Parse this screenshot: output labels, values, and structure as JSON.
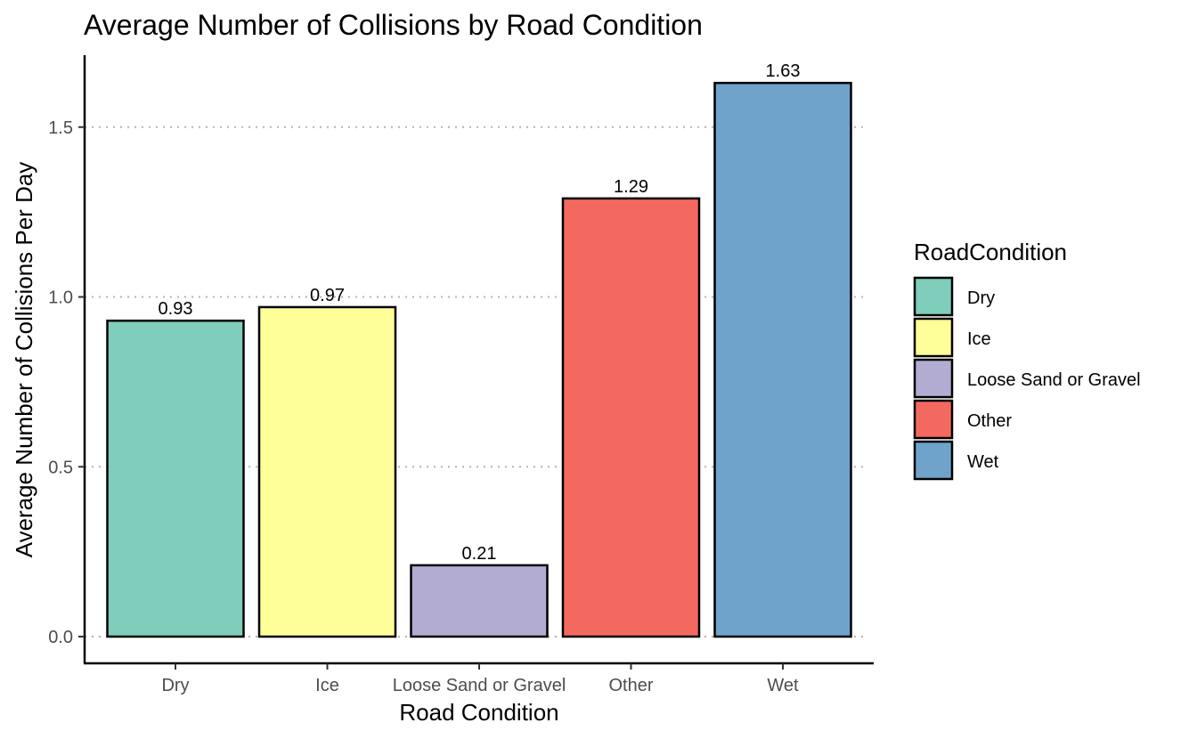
{
  "chart_data": {
    "type": "bar",
    "title": "Average Number of Collisions by Road Condition",
    "xlabel": "Road Condition",
    "ylabel": "Average Number of Collisions Per Day",
    "categories": [
      "Dry",
      "Ice",
      "Loose Sand or Gravel",
      "Other",
      "Wet"
    ],
    "values": [
      0.93,
      0.97,
      0.21,
      1.29,
      1.63
    ],
    "data_labels": [
      "0.93",
      "0.97",
      "0.21",
      "1.29",
      "1.63"
    ],
    "colors": [
      "#7fcdbb",
      "#ffff99",
      "#b2abd2",
      "#f4695f",
      "#6fa3cb"
    ],
    "ylim": [
      -0.08,
      1.7
    ],
    "yticks": [
      0.0,
      0.5,
      1.0,
      1.5
    ],
    "ytick_labels": [
      "0.0",
      "0.5",
      "1.0",
      "1.5"
    ],
    "grid": "horizontal dotted",
    "legend": {
      "title": "RoadCondition",
      "placement": "right",
      "entries": [
        "Dry",
        "Ice",
        "Loose Sand or Gravel",
        "Other",
        "Wet"
      ]
    }
  }
}
